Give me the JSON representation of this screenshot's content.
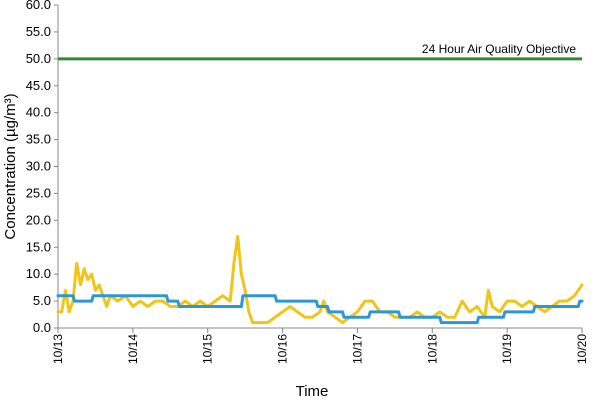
{
  "chart_data": {
    "type": "line",
    "title": "",
    "xlabel": "Time",
    "ylabel": "Concentration (µg/m³)",
    "ylim": [
      0,
      60
    ],
    "y_ticks": [
      "0.0",
      "5.0",
      "10.0",
      "15.0",
      "20.0",
      "25.0",
      "30.0",
      "35.0",
      "40.0",
      "45.0",
      "50.0",
      "55.0",
      "60.0"
    ],
    "x_ticks": [
      "10/13",
      "10/14",
      "10/15",
      "10/16",
      "10/17",
      "10/18",
      "10/19",
      "10/20"
    ],
    "xlim_days": [
      13,
      20
    ],
    "grid": false,
    "legend": "none",
    "reference_line": {
      "label": "24 Hour Air Quality Objective",
      "value": 50,
      "color": "#2e8b2e"
    },
    "series": [
      {
        "color": "#f0c419",
        "x": [
          13.0,
          13.05,
          13.1,
          13.15,
          13.2,
          13.25,
          13.3,
          13.35,
          13.4,
          13.45,
          13.5,
          13.55,
          13.6,
          13.65,
          13.7,
          13.8,
          13.9,
          14.0,
          14.1,
          14.2,
          14.3,
          14.4,
          14.5,
          14.6,
          14.7,
          14.8,
          14.9,
          15.0,
          15.1,
          15.2,
          15.3,
          15.35,
          15.4,
          15.45,
          15.5,
          15.55,
          15.6,
          15.65,
          15.7,
          15.8,
          15.9,
          16.0,
          16.1,
          16.2,
          16.3,
          16.4,
          16.5,
          16.55,
          16.6,
          16.7,
          16.8,
          16.9,
          17.0,
          17.1,
          17.2,
          17.3,
          17.4,
          17.5,
          17.6,
          17.7,
          17.8,
          17.9,
          18.0,
          18.1,
          18.2,
          18.3,
          18.4,
          18.5,
          18.6,
          18.7,
          18.75,
          18.8,
          18.9,
          19.0,
          19.1,
          19.2,
          19.3,
          19.4,
          19.5,
          19.6,
          19.7,
          19.8,
          19.9,
          20.0
        ],
        "values": [
          3,
          3,
          7,
          3,
          5,
          12,
          8,
          11,
          9,
          10,
          7,
          8,
          6,
          4,
          6,
          5,
          6,
          4,
          5,
          4,
          5,
          5,
          4,
          4,
          5,
          4,
          5,
          4,
          5,
          6,
          5,
          12,
          17,
          10,
          7,
          3,
          1,
          1,
          1,
          1,
          2,
          3,
          4,
          3,
          2,
          2,
          3,
          5,
          3,
          2,
          1,
          2,
          3,
          5,
          5,
          3,
          3,
          2,
          2,
          2,
          3,
          2,
          2,
          3,
          2,
          2,
          5,
          3,
          4,
          2,
          7,
          4,
          3,
          5,
          5,
          4,
          5,
          4,
          3,
          4,
          5,
          5,
          6,
          8
        ]
      },
      {
        "color": "#2b97d6",
        "x": [
          13.0,
          13.2,
          13.22,
          13.45,
          13.47,
          14.45,
          14.47,
          14.6,
          14.62,
          15.45,
          15.47,
          15.9,
          15.92,
          16.45,
          16.47,
          16.6,
          16.62,
          16.8,
          16.82,
          17.15,
          17.17,
          17.55,
          17.57,
          18.1,
          18.12,
          18.6,
          18.62,
          18.95,
          18.97,
          19.35,
          19.37,
          19.95,
          19.97,
          20.0
        ],
        "values": [
          6,
          6,
          5,
          5,
          6,
          6,
          5,
          5,
          4,
          4,
          6,
          6,
          5,
          5,
          4,
          4,
          3,
          3,
          2,
          2,
          3,
          3,
          2,
          2,
          1,
          1,
          2,
          2,
          3,
          3,
          4,
          4,
          5,
          5
        ]
      }
    ]
  }
}
